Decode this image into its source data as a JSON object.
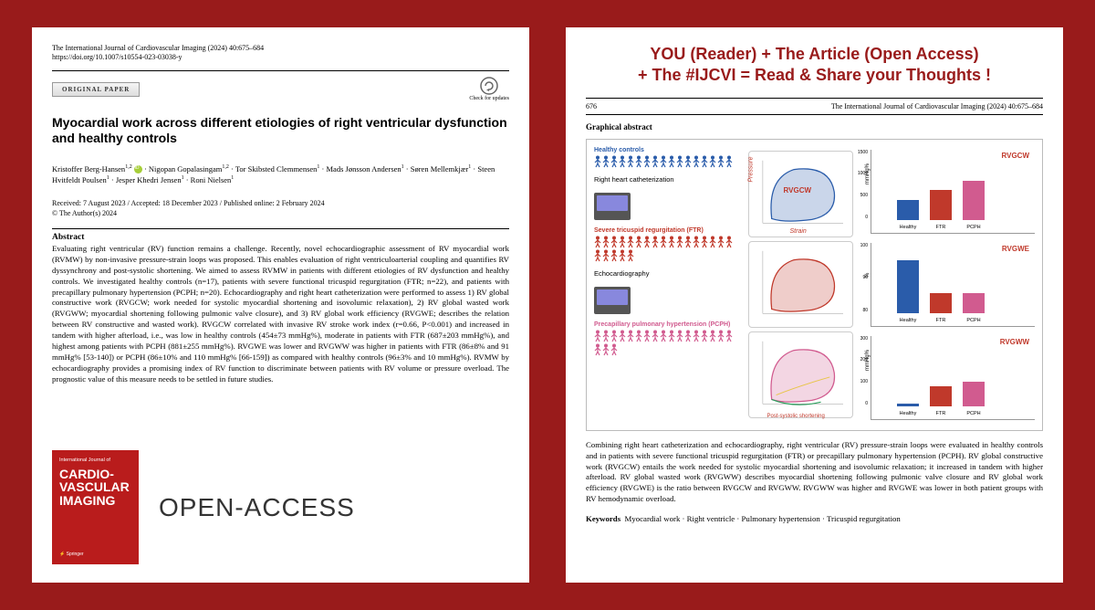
{
  "left": {
    "journal": "The International Journal of Cardiovascular Imaging (2024) 40:675–684",
    "doi": "https://doi.org/10.1007/s10554-023-03038-y",
    "paperType": "ORIGINAL PAPER",
    "checkUpdates": "Check for updates",
    "title": "Myocardial work across different etiologies of right ventricular dysfunction and healthy controls",
    "authorsHtml": "Kristoffer Berg-Hansen<sup>1,2</sup> <span class='orcid'></span> · Nigopan Gopalasingam<sup>1,2</sup> · Tor Skibsted Clemmensen<sup>1</sup> · Mads Jønsson Andersen<sup>1</sup> · Søren Mellemkjær<sup>1</sup> · Steen Hvitfeldt Poulsen<sup>1</sup> · Jesper Khedri Jensen<sup>1</sup> · Roni Nielsen<sup>1</sup>",
    "dates": "Received: 7 August 2023 / Accepted: 18 December 2023 / Published online: 2 February 2024",
    "copyright": "© The Author(s) 2024",
    "abstractLabel": "Abstract",
    "abstract": "Evaluating right ventricular (RV) function remains a challenge. Recently, novel echocardiographic assessment of RV myocardial work (RVMW) by non-invasive pressure-strain loops was proposed. This enables evaluation of right ventriculoarterial coupling and quantifies RV dyssynchrony and post-systolic shortening. We aimed to assess RVMW in patients with different etiologies of RV dysfunction and healthy controls. We investigated healthy controls (n=17), patients with severe functional tricuspid regurgitation (FTR; n=22), and patients with precapillary pulmonary hypertension (PCPH; n=20). Echocardiography and right heart catheterization were performed to assess 1) RV global constructive work (RVGCW; work needed for systolic myocardial shortening and isovolumic relaxation), 2) RV global wasted work (RVGWW; myocardial shortening following pulmonic valve closure), and 3) RV global work efficiency (RVGWE; describes the relation between RV constructive and wasted work). RVGCW correlated with invasive RV stroke work index (r=0.66, P<0.001) and increased in tandem with higher afterload, i.e., was low in healthy controls (454±73 mmHg%), moderate in patients with FTR (687±203 mmHg%), and highest among patients with PCPH (881±255 mmHg%). RVGWE was lower and RVGWW was higher in patients with FTR (86±8% and 91 mmHg% [53-140]) or PCPH (86±10% and 110 mmHg% [66-159]) as compared with healthy controls (96±3% and 10 mmHg%). RVMW by echocardiography provides a promising index of RV function to discriminate between patients with RV volume or pressure overload. The prognostic value of this measure needs to be settled in future studies.",
    "coverTop": "International Journal of",
    "coverMain": "CARDIO-VASCULAR IMAGING",
    "coverPub": "⚡ Springer",
    "oaText": "OPEN-ACCESS"
  },
  "right": {
    "bannerL1": "YOU (Reader) + The Article (Open Access)",
    "bannerL2": "+ The #IJCVI = Read &  Share your Thoughts !",
    "pageNum": "676",
    "journal": "The International Journal of Cardiovascular Imaging (2024) 40:675–684",
    "gaLabel": "Graphical abstract",
    "groups": [
      {
        "label": "Healthy controls",
        "color": "#2a5caa",
        "n": 17
      },
      {
        "label": "Severe tricuspid regurgitation (FTR)",
        "color": "#c0392b",
        "n": 22
      },
      {
        "label": "Precapillary pulmonary hypertension (PCPH)",
        "color": "#d15b8f",
        "n": 20
      }
    ],
    "methods": [
      "Right heart catheterization",
      "Echocardiography"
    ],
    "loopLabels": {
      "y": "Pressure",
      "x": "Strain",
      "inside": "RVGCW",
      "bottom": "Post-systolic shortening"
    },
    "charts": [
      {
        "title": "RVGCW",
        "ylab": "mmHg%",
        "ymax": 1500,
        "ticks": [
          "1500",
          "1000",
          "500",
          "0"
        ],
        "bars": [
          {
            "v": 454,
            "c": "#2a5caa",
            "l": "Healthy"
          },
          {
            "v": 687,
            "c": "#c0392b",
            "l": "FTR"
          },
          {
            "v": 881,
            "c": "#d15b8f",
            "l": "PCPH"
          }
        ]
      },
      {
        "title": "RVGWE",
        "ylab": "%",
        "ymax": 100,
        "ticks": [
          "100",
          "90",
          "80"
        ],
        "bars": [
          {
            "v": 96,
            "c": "#2a5caa",
            "l": "Healthy"
          },
          {
            "v": 86,
            "c": "#c0392b",
            "l": "FTR"
          },
          {
            "v": 86,
            "c": "#d15b8f",
            "l": "PCPH"
          }
        ]
      },
      {
        "title": "RVGWW",
        "ylab": "mmHg%",
        "ymax": 300,
        "ticks": [
          "300",
          "200",
          "100",
          "0"
        ],
        "bars": [
          {
            "v": 10,
            "c": "#2a5caa",
            "l": "Healthy"
          },
          {
            "v": 91,
            "c": "#c0392b",
            "l": "FTR"
          },
          {
            "v": 110,
            "c": "#d15b8f",
            "l": "PCPH"
          }
        ]
      }
    ],
    "caption": "Combining right heart catheterization and echocardiography, right ventricular (RV) pressure-strain loops were evaluated in healthy controls and in patients with severe functional tricuspid regurgitation (FTR) or precapillary pulmonary hypertension (PCPH). RV global constructive work (RVGCW) entails the work needed for systolic myocardial shortening and isovolumic relaxation; it increased in tandem with higher afterload. RV global wasted work (RVGWW) describes myocardial shortening following pulmonic valve closure and RV global work efficiency (RVGWE) is the ratio between RVGCW and RVGWW. RVGWW was higher and RVGWE was lower in both patient groups with RV hemodynamic overload.",
    "kwLabel": "Keywords",
    "keywords": "Myocardial work · Right ventricle · Pulmonary hypertension · Tricuspid regurgitation"
  }
}
